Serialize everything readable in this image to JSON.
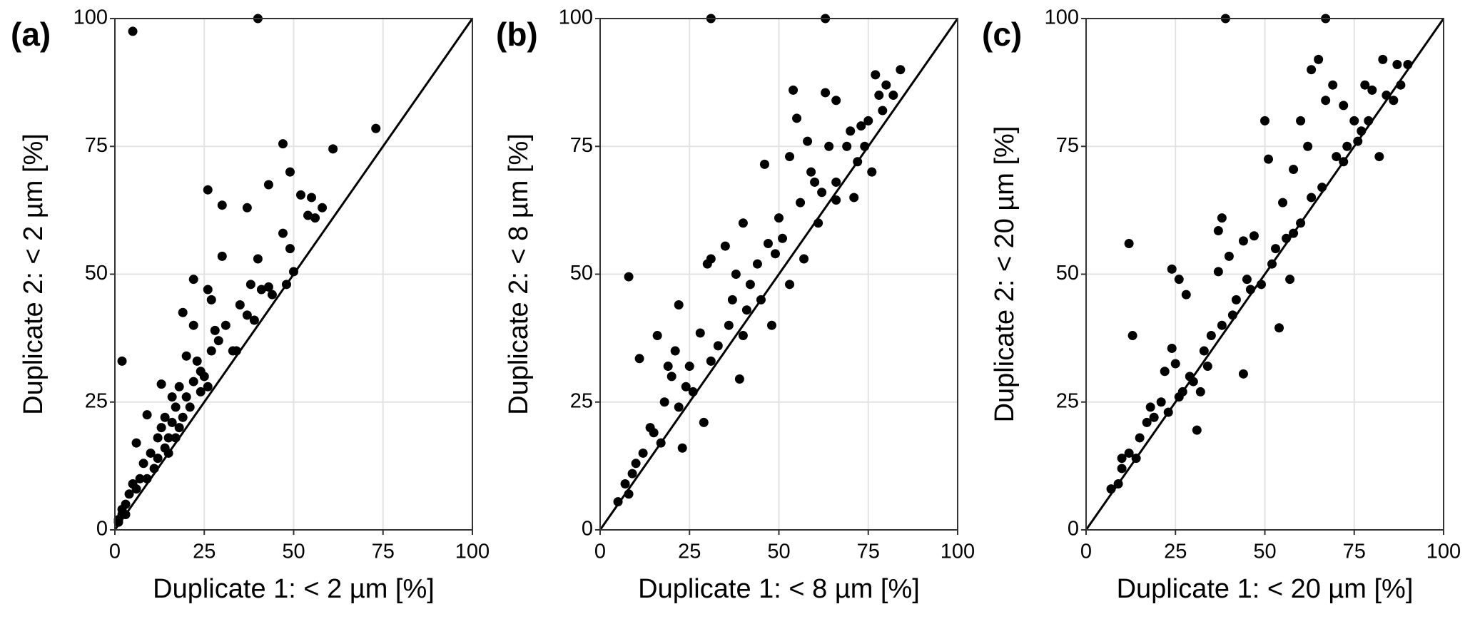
{
  "chart_data": [
    {
      "type": "scatter",
      "label": "(a)",
      "xlabel": "Duplicate 1: < 2 µm [%]",
      "ylabel": "Duplicate 2: < 2 µm [%]",
      "color": "#000000",
      "grid": true,
      "identity_line": true,
      "xlim": [
        0,
        100
      ],
      "ylim": [
        0,
        100
      ],
      "xticks": [
        0,
        25,
        50,
        75,
        100
      ],
      "yticks": [
        0,
        25,
        50,
        75,
        100
      ],
      "x": [
        5,
        40,
        2,
        47,
        73,
        61,
        49,
        26,
        30,
        37,
        43,
        52,
        55,
        58,
        54,
        56,
        47,
        30,
        40,
        22,
        49,
        48,
        50,
        19,
        22,
        31,
        38,
        41,
        43,
        44,
        35,
        37,
        39,
        27,
        26,
        28,
        29,
        27,
        33,
        34,
        20,
        23,
        24,
        22,
        25,
        18,
        13,
        9,
        16,
        17,
        19,
        14,
        20,
        12,
        15,
        17,
        15,
        10,
        8,
        11,
        6,
        7,
        5,
        4,
        3,
        2,
        1,
        2,
        6,
        9,
        12,
        14,
        18,
        21,
        24,
        13,
        16,
        26,
        1,
        3
      ],
      "values": [
        97.5,
        100,
        33,
        75.5,
        78.5,
        74.5,
        70,
        66.5,
        63.5,
        63,
        67.5,
        65.5,
        65,
        63,
        61.5,
        61,
        58,
        53.5,
        53,
        49,
        55,
        48,
        50.5,
        42.5,
        40,
        40,
        48,
        47,
        47.5,
        46,
        44,
        42,
        41,
        45,
        47,
        39,
        37,
        35,
        35,
        35,
        34,
        33,
        31,
        29,
        30,
        28,
        28.5,
        22.5,
        26,
        24,
        22,
        22,
        26,
        18,
        18,
        18,
        15,
        15,
        13,
        12,
        17,
        10,
        9,
        7,
        5,
        3,
        2,
        4,
        8,
        10,
        14,
        16,
        20,
        24,
        27,
        20,
        21,
        28,
        1.5,
        3
      ]
    },
    {
      "type": "scatter",
      "label": "(b)",
      "xlabel": "Duplicate 1: < 8 µm [%]",
      "ylabel": "Duplicate 2: < 8 µm [%]",
      "color": "#000000",
      "grid": true,
      "identity_line": true,
      "xlim": [
        0,
        100
      ],
      "ylim": [
        0,
        100
      ],
      "xticks": [
        0,
        25,
        50,
        75,
        100
      ],
      "yticks": [
        0,
        25,
        50,
        75,
        100
      ],
      "x": [
        31,
        63,
        8,
        84,
        77,
        80,
        78,
        82,
        54,
        63,
        66,
        55,
        73,
        75,
        70,
        58,
        64,
        69,
        72,
        76,
        46,
        53,
        59,
        60,
        62,
        56,
        71,
        66,
        50,
        47,
        40,
        35,
        31,
        30,
        44,
        49,
        57,
        38,
        42,
        45,
        48,
        36,
        40,
        33,
        28,
        22,
        16,
        11,
        21,
        19,
        25,
        24,
        20,
        29,
        23,
        18,
        14,
        17,
        12,
        10,
        9,
        7,
        8,
        5,
        15,
        22,
        26,
        31,
        37,
        41,
        51,
        39,
        53,
        61,
        66,
        74,
        79
      ],
      "values": [
        100,
        100,
        49.5,
        90,
        89,
        87,
        85,
        85,
        86,
        85.5,
        84,
        80.5,
        79,
        80,
        78,
        76,
        75,
        75,
        72,
        70,
        71.5,
        73,
        70,
        68,
        66,
        64,
        65,
        64.5,
        61,
        56,
        60,
        55.5,
        53,
        52,
        52,
        54,
        53,
        50,
        48,
        45,
        40,
        40,
        38,
        36,
        38.5,
        44,
        38,
        33.5,
        35,
        32,
        32,
        28,
        30,
        21,
        16,
        25,
        20,
        17,
        15,
        13,
        11,
        9,
        7,
        5.5,
        19,
        24,
        27,
        33,
        45,
        43,
        57,
        29.5,
        48,
        60,
        68,
        75,
        82
      ]
    },
    {
      "type": "scatter",
      "label": "(c)",
      "xlabel": "Duplicate 1: < 20 µm [%]",
      "ylabel": "Duplicate 2: < 20 µm [%]",
      "color": "#000000",
      "grid": true,
      "identity_line": true,
      "xlim": [
        0,
        100
      ],
      "ylim": [
        0,
        100
      ],
      "xticks": [
        0,
        25,
        50,
        75,
        100
      ],
      "yticks": [
        0,
        25,
        50,
        75,
        100
      ],
      "x": [
        39,
        67,
        12,
        13,
        24,
        26,
        28,
        31,
        44,
        54,
        50,
        51,
        58,
        60,
        63,
        65,
        67,
        69,
        72,
        75,
        78,
        80,
        83,
        87,
        90,
        82,
        70,
        73,
        77,
        62,
        60,
        58,
        56,
        55,
        47,
        44,
        38,
        37,
        40,
        37,
        42,
        45,
        49,
        52,
        35,
        38,
        33,
        30,
        32,
        27,
        25,
        24,
        22,
        21,
        19,
        17,
        15,
        14,
        12,
        10,
        9,
        7,
        10,
        18,
        23,
        26,
        29,
        34,
        41,
        46,
        53,
        57,
        63,
        66,
        72,
        76,
        79,
        84,
        86,
        88
      ],
      "values": [
        100,
        100,
        56,
        38,
        51,
        49,
        46,
        19.5,
        30.5,
        39.5,
        80,
        72.5,
        70.5,
        80,
        90,
        92,
        84,
        87,
        83,
        80,
        87,
        86,
        92,
        91,
        91,
        73,
        73,
        75,
        78,
        75,
        60,
        58,
        57,
        64,
        57.5,
        56.5,
        61,
        58.5,
        53.5,
        50.5,
        45,
        49,
        48,
        52,
        38,
        40,
        35,
        29,
        27,
        27,
        32.5,
        35.5,
        31,
        25,
        22,
        21,
        18,
        14,
        15,
        12,
        9,
        8,
        14,
        24,
        23,
        26,
        30,
        32,
        42,
        47,
        55,
        49,
        65,
        67,
        72,
        76,
        80,
        85,
        84,
        87
      ]
    }
  ]
}
